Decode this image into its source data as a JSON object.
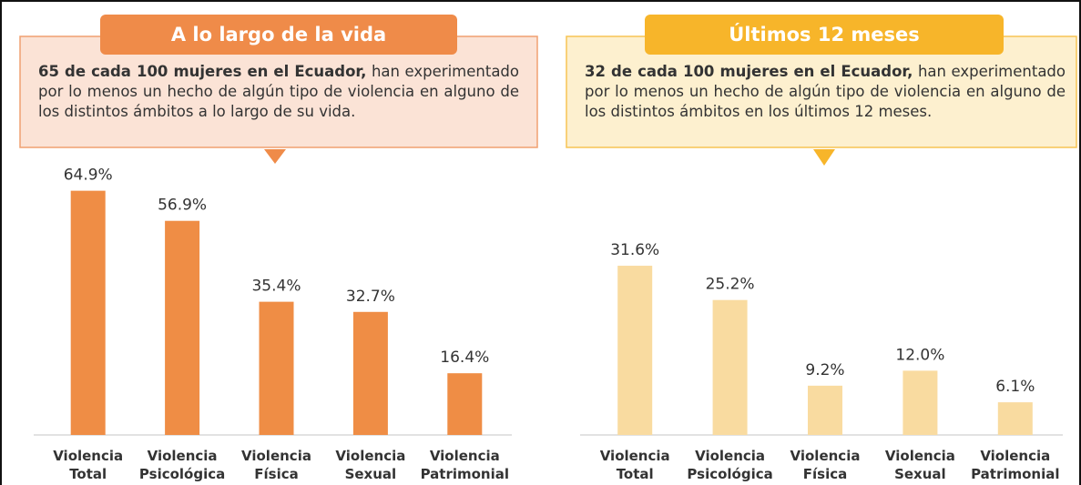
{
  "chart_data": [
    {
      "type": "bar",
      "title": "A lo largo de la vida",
      "description_bold": "65 de cada 100 mujeres en el Ecuador,",
      "description": "han experimentado  por lo menos  un hecho de algún tipo de violencia en alguno de los distintos ámbitos a lo largo de su vida.",
      "categories": [
        "Violencia Total",
        "Violencia Psicológica",
        "Violencia Física",
        "Violencia Sexual",
        "Violencia Patrimonial"
      ],
      "values": [
        64.9,
        56.9,
        35.4,
        32.7,
        16.4
      ],
      "value_labels": [
        "64.9%",
        "56.9%",
        "35.4%",
        "32.7%",
        "16.4%"
      ],
      "color": "#ef8d45",
      "ylim": [
        0,
        74
      ]
    },
    {
      "type": "bar",
      "title": "Últimos 12 meses",
      "description_bold": "32 de cada 100 mujeres en el Ecuador,",
      "description": "han experimentado  por lo menos  un hecho de algún tipo de violencia en alguno de los distintos ámbitos en los últimos 12 meses.",
      "categories": [
        "Violencia Total",
        "Violencia Psicológica",
        "Violencia Física",
        "Violencia Sexual",
        "Violencia Patrimonial"
      ],
      "values": [
        31.6,
        25.2,
        9.2,
        12.0,
        6.1
      ],
      "value_labels": [
        "31.6%",
        "25.2%",
        "9.2%",
        "12.0%",
        "6.1%"
      ],
      "color": "#f9dba0",
      "ylim": [
        0,
        52
      ]
    }
  ]
}
